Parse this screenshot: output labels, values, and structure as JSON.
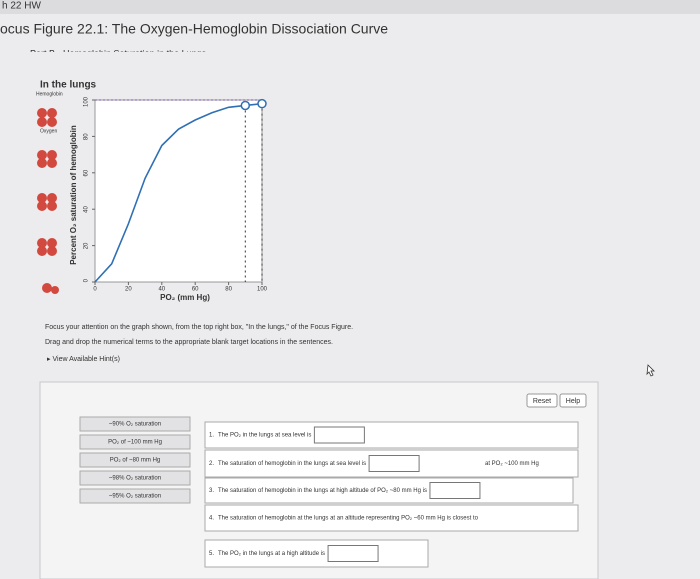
{
  "header": {
    "breadcrumb": "h 22 HW",
    "title": "ocus Figure 22.1: The Oxygen-Hemoglobin Dissociation Curve",
    "part": "Part B - Hemoglobin Saturation in the Lungs"
  },
  "figure": {
    "title": "In the lungs",
    "legend_label": "Hemoglobin",
    "oxygen_label": "Oxygen",
    "y_label": "Percent O₂ saturation of hemoglobin",
    "x_label": "PO₂ (mm Hg)",
    "xlim": [
      0,
      100
    ],
    "ylim": [
      0,
      100
    ],
    "xticks": [
      0,
      20,
      40,
      60,
      80,
      100
    ],
    "yticks": [
      0,
      20,
      40,
      60,
      80,
      100
    ],
    "curve": {
      "x": [
        0,
        10,
        20,
        30,
        40,
        50,
        60,
        70,
        80,
        90,
        100
      ],
      "y": [
        0,
        10,
        32,
        57,
        75,
        84,
        89,
        93,
        96,
        97,
        98
      ]
    },
    "points": {
      "x": [
        90,
        100
      ],
      "y": [
        97,
        98
      ]
    }
  },
  "instructions": [
    "Focus your attention on the graph shown, from the top right box, \"In the lungs,\" of the Focus Figure.",
    "Drag and drop the numerical terms to the appropriate blank target locations in the sentences."
  ],
  "hint_link": "View Available Hint(s)",
  "buttons": [
    "Reset",
    "Help"
  ],
  "labels": [
    "~90% O₂ saturation",
    "PO₂ of ~100 mm Hg",
    "PO₂ of ~80 mm Hg",
    "~98% O₂ saturation",
    "~95% O₂ saturation"
  ],
  "sentences": [
    {
      "number": "1.",
      "text": "The PO₂ in the lungs at sea level is"
    },
    {
      "number": "2.",
      "text": "The saturation of hemoglobin in the lungs at sea level is",
      "suffix": "at PO₂ ~100 mm Hg"
    },
    {
      "number": "3.",
      "text": "The saturation of hemoglobin in the lungs at high altitude of PO₂ ~80 mm Hg is"
    },
    {
      "number": "4.",
      "text": "The saturation of hemoglobin at the lungs at an altitude representing PO₂ ~60 mm Hg is closest to"
    },
    {
      "number": "5.",
      "text": "The PO₂ in the lungs at a high altitude is"
    }
  ]
}
